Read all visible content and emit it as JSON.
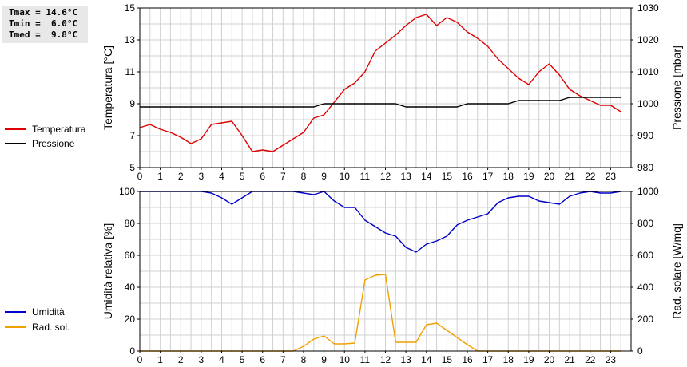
{
  "stats": {
    "tmax": "Tmax = 14.6°C",
    "tmin": "Tmin =  6.0°C",
    "tmed": "Tmed =  9.8°C"
  },
  "chart_data": [
    {
      "type": "line",
      "ylabel_left": "Temperatura [°C]",
      "ylabel_right": "Pressione [mbar]",
      "x_ticks": [
        "0",
        "1",
        "2",
        "3",
        "4",
        "5",
        "6",
        "7",
        "8",
        "9",
        "10",
        "11",
        "12",
        "13",
        "14",
        "15",
        "16",
        "17",
        "18",
        "19",
        "20",
        "21",
        "22",
        "23"
      ],
      "xlim": [
        0,
        24
      ],
      "ylim_left": [
        5,
        15
      ],
      "yticks_left": [
        "5",
        "7",
        "9",
        "11",
        "13",
        "15"
      ],
      "ylim_right": [
        980,
        1030
      ],
      "yticks_right": [
        "980",
        "990",
        "1000",
        "1010",
        "1020",
        "1030"
      ],
      "grid": true,
      "legend_placement": "left-outside",
      "series": [
        {
          "name": "Temperatura",
          "axis": "left",
          "color": "#e00000",
          "x": [
            0,
            0.5,
            1,
            1.5,
            2,
            2.5,
            3,
            3.5,
            4,
            4.5,
            5,
            5.5,
            6,
            6.5,
            7,
            7.5,
            8,
            8.5,
            9,
            9.5,
            10,
            10.5,
            11,
            11.5,
            12,
            12.5,
            13,
            13.5,
            14,
            14.5,
            15,
            15.5,
            16,
            16.5,
            17,
            17.5,
            18,
            18.5,
            19,
            19.5,
            20,
            20.5,
            21,
            21.5,
            22,
            22.5,
            23,
            23.5
          ],
          "y": [
            7.5,
            7.7,
            7.4,
            7.2,
            6.9,
            6.5,
            6.8,
            7.7,
            7.8,
            7.9,
            7.0,
            6.0,
            6.1,
            6.0,
            6.4,
            6.8,
            7.2,
            8.1,
            8.3,
            9.1,
            9.9,
            10.3,
            11.0,
            12.3,
            12.8,
            13.3,
            13.9,
            14.4,
            14.6,
            13.9,
            14.4,
            14.1,
            13.5,
            13.1,
            12.6,
            11.8,
            11.2,
            10.6,
            10.2,
            11.0,
            11.5,
            10.8,
            9.9,
            9.5,
            9.2,
            8.9,
            8.9,
            8.5
          ]
        },
        {
          "name": "Pressione",
          "axis": "right",
          "color": "#000000",
          "x": [
            0,
            0.5,
            1,
            1.5,
            2,
            2.5,
            3,
            3.5,
            4,
            4.5,
            5,
            5.5,
            6,
            6.5,
            7,
            7.5,
            8,
            8.5,
            9,
            9.5,
            10,
            10.5,
            11,
            11.5,
            12,
            12.5,
            13,
            13.5,
            14,
            14.5,
            15,
            15.5,
            16,
            16.5,
            17,
            17.5,
            18,
            18.5,
            19,
            19.5,
            20,
            20.5,
            21,
            21.5,
            22,
            22.5,
            23,
            23.5
          ],
          "y": [
            999,
            999,
            999,
            999,
            999,
            999,
            999,
            999,
            999,
            999,
            999,
            999,
            999,
            999,
            999,
            999,
            999,
            999,
            1000,
            1000,
            1000,
            1000,
            1000,
            1000,
            1000,
            1000,
            999,
            999,
            999,
            999,
            999,
            999,
            1000,
            1000,
            1000,
            1000,
            1000,
            1001,
            1001,
            1001,
            1001,
            1001,
            1002,
            1002,
            1002,
            1002,
            1002,
            1002
          ]
        }
      ]
    },
    {
      "type": "line",
      "ylabel_left": "Umidità relativa [%]",
      "ylabel_right": "Rad. solare [W/mq]",
      "x_ticks": [
        "0",
        "1",
        "2",
        "3",
        "4",
        "5",
        "6",
        "7",
        "8",
        "9",
        "10",
        "11",
        "12",
        "13",
        "14",
        "15",
        "16",
        "17",
        "18",
        "19",
        "20",
        "21",
        "22",
        "23"
      ],
      "xlim": [
        0,
        24
      ],
      "ylim_left": [
        0,
        100
      ],
      "yticks_left": [
        "0",
        "20",
        "40",
        "60",
        "80",
        "100"
      ],
      "ylim_right": [
        0,
        1000
      ],
      "yticks_right": [
        "0",
        "200",
        "400",
        "600",
        "800",
        "1000"
      ],
      "grid": true,
      "legend_placement": "left-outside",
      "series": [
        {
          "name": "Umidità",
          "axis": "left",
          "color": "#0000c8",
          "x": [
            0,
            0.5,
            1,
            1.5,
            2,
            2.5,
            3,
            3.5,
            4,
            4.5,
            5,
            5.5,
            6,
            6.5,
            7,
            7.5,
            8,
            8.5,
            9,
            9.5,
            10,
            10.5,
            11,
            11.5,
            12,
            12.5,
            13,
            13.5,
            14,
            14.5,
            15,
            15.5,
            16,
            16.5,
            17,
            17.5,
            18,
            18.5,
            19,
            19.5,
            20,
            20.5,
            21,
            21.5,
            22,
            22.5,
            23,
            23.5
          ],
          "y": [
            100,
            100,
            100,
            100,
            100,
            100,
            100,
            99,
            96,
            92,
            96,
            100,
            100,
            100,
            100,
            100,
            99,
            98,
            100,
            94,
            90,
            90,
            82,
            78,
            74,
            72,
            65,
            62,
            67,
            69,
            72,
            79,
            82,
            84,
            86,
            93,
            96,
            97,
            97,
            94,
            93,
            92,
            97,
            99,
            100,
            99,
            99,
            100
          ]
        },
        {
          "name": "Rad. sol.",
          "axis": "right",
          "color": "#f0a000",
          "x": [
            0,
            0.5,
            1,
            1.5,
            2,
            2.5,
            3,
            3.5,
            4,
            4.5,
            5,
            5.5,
            6,
            6.5,
            7,
            7.5,
            8,
            8.5,
            9,
            9.5,
            10,
            10.5,
            11,
            11.5,
            12,
            12.5,
            13,
            13.5,
            14,
            14.5,
            15,
            15.5,
            16,
            16.5,
            17,
            17.5,
            18,
            18.5,
            19,
            19.5,
            20,
            20.5,
            21,
            21.5,
            22,
            22.5,
            23,
            23.5
          ],
          "y": [
            0,
            0,
            0,
            0,
            0,
            0,
            0,
            0,
            0,
            0,
            0,
            0,
            0,
            0,
            0,
            0,
            30,
            75,
            95,
            45,
            45,
            50,
            445,
            475,
            480,
            55,
            55,
            55,
            165,
            175,
            130,
            85,
            40,
            0,
            0,
            0,
            0,
            0,
            0,
            0,
            0,
            0,
            0,
            0,
            0,
            0,
            0,
            0
          ]
        }
      ]
    }
  ]
}
